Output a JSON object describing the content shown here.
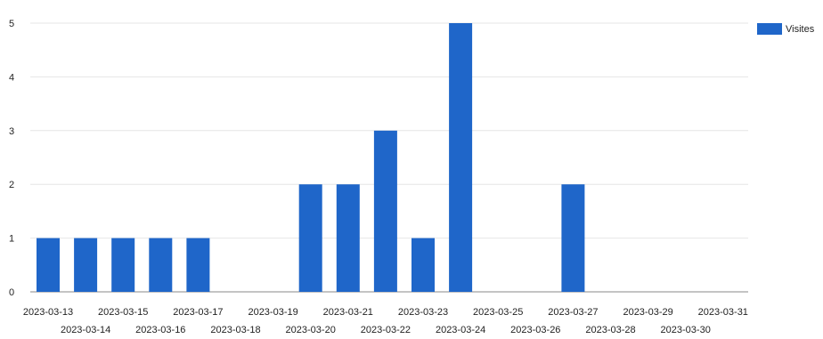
{
  "chart_data": {
    "type": "bar",
    "categories": [
      "2023-03-13",
      "2023-03-14",
      "2023-03-15",
      "2023-03-16",
      "2023-03-17",
      "2023-03-18",
      "2023-03-19",
      "2023-03-20",
      "2023-03-21",
      "2023-03-22",
      "2023-03-23",
      "2023-03-24",
      "2023-03-25",
      "2023-03-26",
      "2023-03-27",
      "2023-03-28",
      "2023-03-29",
      "2023-03-30",
      "2023-03-31"
    ],
    "series": [
      {
        "name": "Visites",
        "color": "#1f66c9",
        "values": [
          1,
          1,
          1,
          1,
          1,
          0,
          0,
          2,
          2,
          3,
          1,
          5,
          0,
          0,
          2,
          0,
          0,
          0,
          0
        ]
      }
    ],
    "ylim": [
      0,
      5
    ],
    "yticks": [
      "0",
      "1",
      "2",
      "3",
      "4",
      "5"
    ],
    "grid": true,
    "legend": "top-right",
    "title": "",
    "xlabel": "",
    "ylabel": ""
  }
}
